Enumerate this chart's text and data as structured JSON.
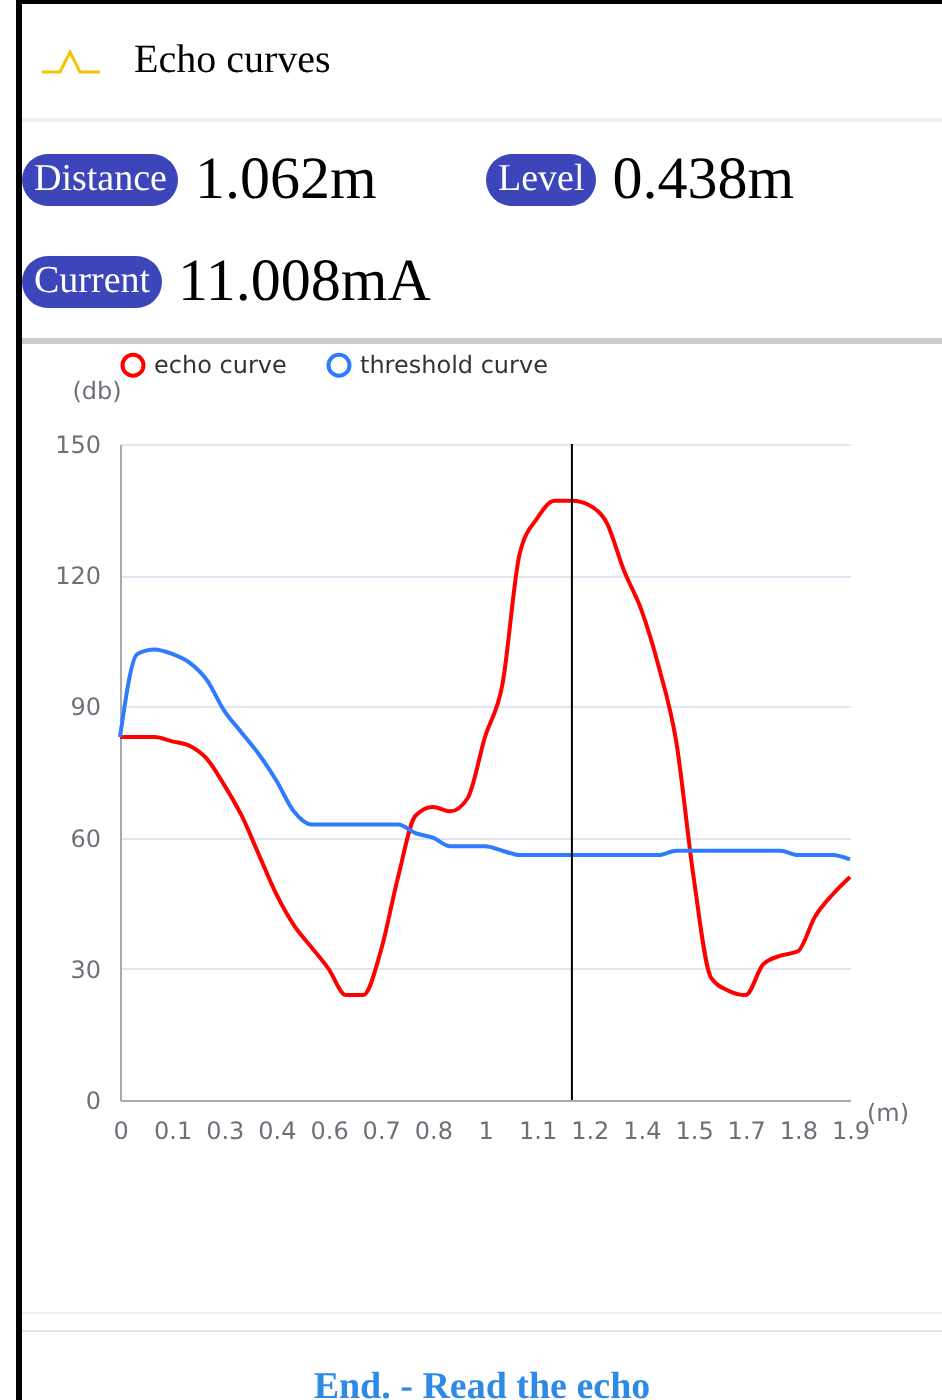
{
  "chart_data": {
    "type": "line",
    "title": "Echo curves",
    "xlabel": "(m)",
    "ylabel": "(db)",
    "annotations": [
      "Distance",
      "1.062m",
      "Level",
      "0.438m",
      "Current",
      "11.008mA",
      "End. - Read the echo"
    ],
    "categories": [
      "0",
      null,
      null,
      "0.1",
      null,
      null,
      "0.3",
      null,
      null,
      "0.4",
      null,
      null,
      "0.6",
      null,
      null,
      "0.7",
      null,
      null,
      "0.8",
      null,
      null,
      "1",
      null,
      null,
      "1.1",
      null,
      null,
      "1.2",
      null,
      null,
      "1.4",
      null,
      null,
      "1.5",
      null,
      null,
      "1.7",
      null,
      null,
      "1.8",
      null,
      null,
      "1.9"
    ],
    "series": [
      {
        "name": "echo curve",
        "color": "#ff0000",
        "values": [
          83,
          83,
          83,
          82,
          81,
          78,
          72,
          65,
          56,
          47,
          40,
          35,
          30,
          24,
          24,
          34,
          51,
          65,
          67,
          66,
          69,
          83,
          95,
          125,
          133,
          137,
          137,
          136,
          132,
          121,
          112,
          99,
          82,
          51,
          28,
          25,
          24,
          31,
          33,
          34,
          42,
          47,
          51
        ]
      },
      {
        "name": "threshold curve",
        "color": "#2f7bff",
        "values": [
          83,
          102,
          103,
          102,
          100,
          96,
          89,
          84,
          79,
          73,
          66,
          63,
          63,
          63,
          63,
          63,
          63,
          61,
          60,
          58,
          58,
          58,
          57,
          56,
          56,
          56,
          56,
          56,
          56,
          56,
          56,
          56,
          57,
          57,
          57,
          57,
          57,
          57,
          57,
          56,
          56,
          56,
          55
        ]
      }
    ],
    "ylim": [
      0,
      150
    ],
    "yticks": [
      0,
      30,
      60,
      90,
      120,
      150
    ],
    "grid": "y",
    "legend": "top",
    "marker": "none",
    "line_style": "solid"
  }
}
